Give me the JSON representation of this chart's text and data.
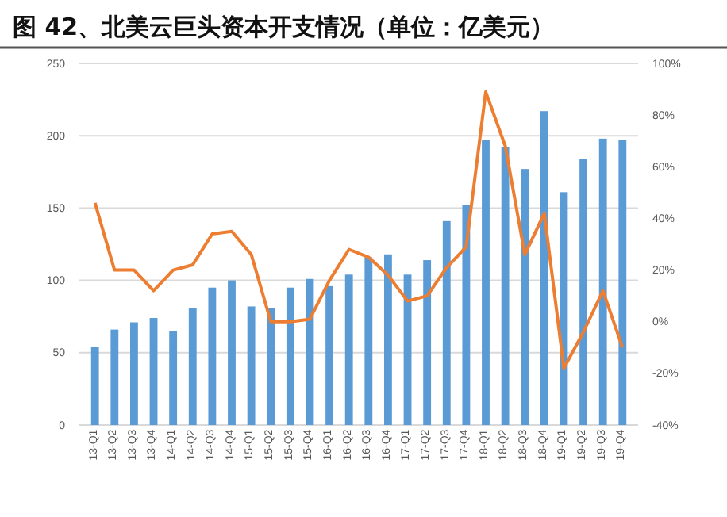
{
  "chart_data": {
    "type": "bar",
    "title": "图 42、北美云巨头资本开支情况（单位：亿美元）",
    "categories": [
      "13-Q1",
      "13-Q2",
      "13-Q3",
      "13-Q4",
      "14-Q1",
      "14-Q2",
      "14-Q3",
      "14-Q4",
      "15-Q1",
      "15-Q2",
      "15-Q3",
      "15-Q4",
      "16-Q1",
      "16-Q2",
      "16-Q3",
      "16-Q4",
      "17-Q1",
      "17-Q2",
      "17-Q3",
      "17-Q4",
      "18-Q1",
      "18-Q2",
      "18-Q3",
      "18-Q4",
      "19-Q1",
      "19-Q2",
      "19-Q3",
      "19-Q4"
    ],
    "series": [
      {
        "color": "#5b9bd5",
        "values": [
          54,
          66,
          71,
          74,
          65,
          81,
          95,
          100,
          82,
          81,
          95,
          101,
          96,
          104,
          116,
          118,
          104,
          114,
          141,
          152,
          197,
          192,
          177,
          217,
          161,
          184,
          198,
          197
        ]
      },
      {
        "type": "line",
        "axis": "y2",
        "color": "#ed7d31",
        "values": [
          46,
          20,
          20,
          12,
          20,
          22,
          34,
          35,
          26,
          0,
          0,
          1,
          16,
          28,
          25,
          18,
          8,
          10,
          21,
          29,
          89,
          68,
          26,
          42,
          -18,
          -4,
          12,
          -10
        ]
      }
    ],
    "ylim": [
      0,
      250
    ],
    "yticks": [
      0,
      50,
      100,
      150,
      200,
      250
    ],
    "y2lim": [
      -40,
      100
    ],
    "y2ticks": [
      {
        "value": -40,
        "label": "-40%"
      },
      {
        "value": -20,
        "label": "-20%"
      },
      {
        "value": 0,
        "label": "0%"
      },
      {
        "value": 20,
        "label": "20%"
      },
      {
        "value": 40,
        "label": "40%"
      },
      {
        "value": 60,
        "label": "60%"
      },
      {
        "value": 80,
        "label": "80%"
      },
      {
        "value": 100,
        "label": "100%"
      }
    ],
    "grid": "y",
    "marker": "none",
    "line_style": "solid"
  }
}
